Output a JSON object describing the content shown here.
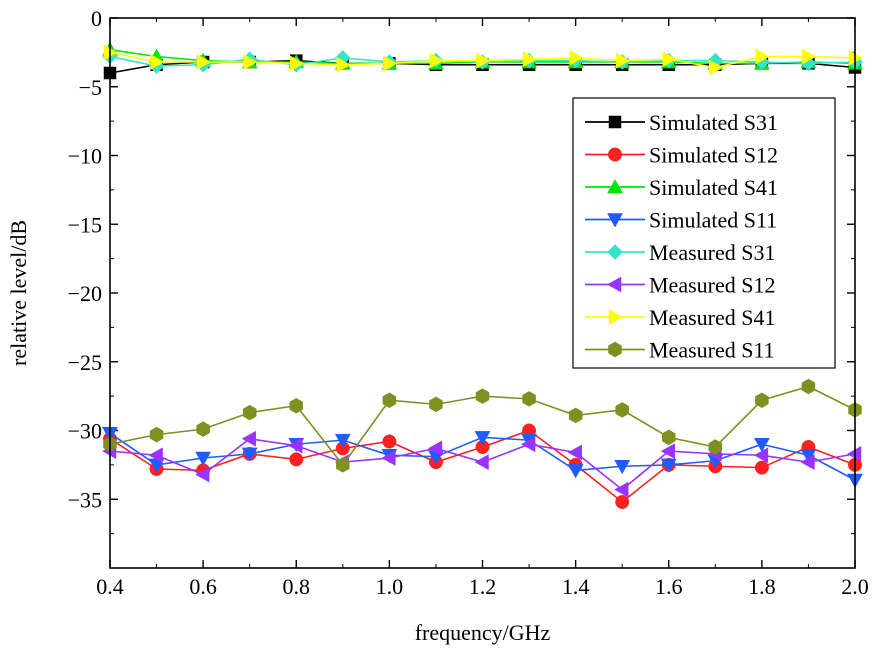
{
  "chart_data": {
    "type": "line",
    "title": "",
    "xlabel": "frequency/GHz",
    "ylabel": "relative level/dB",
    "xlim": [
      0.4,
      2.0
    ],
    "ylim": [
      -40,
      0
    ],
    "x_ticks": [
      "0.4",
      "0.6",
      "0.8",
      "1.0",
      "1.2",
      "1.4",
      "1.6",
      "1.8",
      "2.0"
    ],
    "y_ticks": [
      "0",
      "−5",
      "−10",
      "−15",
      "−20",
      "−25",
      "−30",
      "−35"
    ],
    "legend_position": "right",
    "x": [
      0.4,
      0.5,
      0.6,
      0.7,
      0.8,
      0.9,
      1.0,
      1.1,
      1.2,
      1.3,
      1.4,
      1.5,
      1.6,
      1.7,
      1.8,
      1.9,
      2.0
    ],
    "series": [
      {
        "name": "Simulated S31",
        "color": "#000000",
        "marker": "square",
        "values": [
          -4.0,
          -3.4,
          -3.2,
          -3.2,
          -3.1,
          -3.3,
          -3.3,
          -3.4,
          -3.4,
          -3.4,
          -3.4,
          -3.4,
          -3.4,
          -3.4,
          -3.3,
          -3.3,
          -3.6
        ]
      },
      {
        "name": "Simulated S12",
        "color": "#ff2020",
        "marker": "circle",
        "values": [
          -30.6,
          -32.8,
          -32.9,
          -31.7,
          -32.1,
          -31.3,
          -30.8,
          -32.3,
          -31.2,
          -30.0,
          -32.5,
          -35.2,
          -32.5,
          -32.6,
          -32.7,
          -31.2,
          -32.5
        ]
      },
      {
        "name": "Simulated S41",
        "color": "#00e600",
        "marker": "triangle-up",
        "values": [
          -2.3,
          -2.8,
          -3.1,
          -3.2,
          -3.2,
          -3.3,
          -3.3,
          -3.3,
          -3.2,
          -3.2,
          -3.2,
          -3.2,
          -3.2,
          -3.3,
          -3.3,
          -3.2,
          -3.3
        ]
      },
      {
        "name": "Simulated S11",
        "color": "#1f5cff",
        "marker": "triangle-down",
        "values": [
          -30.2,
          -32.5,
          -32.0,
          -31.7,
          -31.0,
          -30.7,
          -31.8,
          -31.9,
          -30.5,
          -30.7,
          -32.9,
          -32.6,
          -32.5,
          -32.2,
          -31.0,
          -31.8,
          -33.6
        ]
      },
      {
        "name": "Measured S31",
        "color": "#33e5c8",
        "marker": "diamond",
        "values": [
          -2.8,
          -3.5,
          -3.4,
          -3.0,
          -3.4,
          -2.9,
          -3.2,
          -3.1,
          -3.2,
          -3.1,
          -3.1,
          -3.2,
          -3.1,
          -3.1,
          -3.2,
          -3.3,
          -3.2
        ]
      },
      {
        "name": "Measured S12",
        "color": "#9933ff",
        "marker": "triangle-left",
        "values": [
          -31.5,
          -31.8,
          -33.2,
          -30.6,
          -31.1,
          -32.3,
          -32.0,
          -31.3,
          -32.3,
          -31.0,
          -31.6,
          -34.3,
          -31.5,
          -31.7,
          -31.8,
          -32.3,
          -31.7
        ]
      },
      {
        "name": "Measured S41",
        "color": "#ffff00",
        "marker": "triangle-right",
        "values": [
          -2.5,
          -3.2,
          -3.2,
          -3.2,
          -3.3,
          -3.4,
          -3.3,
          -3.1,
          -3.1,
          -3.0,
          -2.9,
          -3.1,
          -3.0,
          -3.6,
          -2.8,
          -2.8,
          -2.9
        ]
      },
      {
        "name": "Measured S11",
        "color": "#7f8f20",
        "marker": "hexagon",
        "values": [
          -31.0,
          -30.3,
          -29.9,
          -28.7,
          -28.2,
          -32.5,
          -27.8,
          -28.1,
          -27.5,
          -27.7,
          -28.9,
          -28.5,
          -30.5,
          -31.2,
          -27.8,
          -26.8,
          -28.5
        ]
      }
    ]
  }
}
